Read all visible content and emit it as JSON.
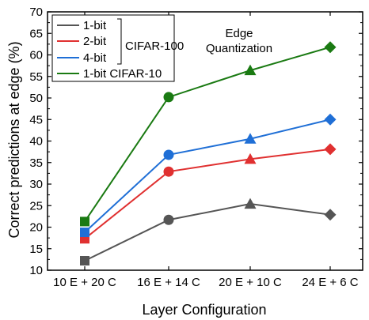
{
  "chart_data": {
    "type": "line",
    "title": "",
    "xlabel": "Layer Configuration",
    "ylabel": "Correct predictions at edge (%)",
    "categories": [
      "10 E + 20 C",
      "16 E + 14 C",
      "20 E + 10 C",
      "24 E + 6 C"
    ],
    "ylim": [
      10,
      70
    ],
    "yticks": [
      10,
      15,
      20,
      25,
      30,
      35,
      40,
      45,
      50,
      55,
      60,
      65,
      70
    ],
    "grid": false,
    "legend_position": "top-left",
    "legend_group_label": "CIFAR-100",
    "annotation": [
      "Edge",
      "Quantization"
    ],
    "series": [
      {
        "name": "1-bit",
        "color": "#555555",
        "values": [
          12.2,
          21.7,
          25.4,
          22.9
        ],
        "markers": [
          "square",
          "circle",
          "triangle",
          "diamond"
        ]
      },
      {
        "name": "2-bit",
        "color": "#e03030",
        "values": [
          17.3,
          32.9,
          35.8,
          38.1
        ],
        "markers": [
          "square",
          "circle",
          "triangle",
          "diamond"
        ]
      },
      {
        "name": "4-bit",
        "color": "#1f6fd6",
        "values": [
          18.8,
          36.8,
          40.5,
          45.0
        ],
        "markers": [
          "square",
          "circle",
          "triangle",
          "diamond"
        ]
      },
      {
        "name": "1-bit CIFAR-10",
        "color": "#1a7a12",
        "values": [
          21.3,
          50.2,
          56.4,
          61.8
        ],
        "markers": [
          "square",
          "circle",
          "triangle",
          "diamond"
        ]
      }
    ]
  }
}
